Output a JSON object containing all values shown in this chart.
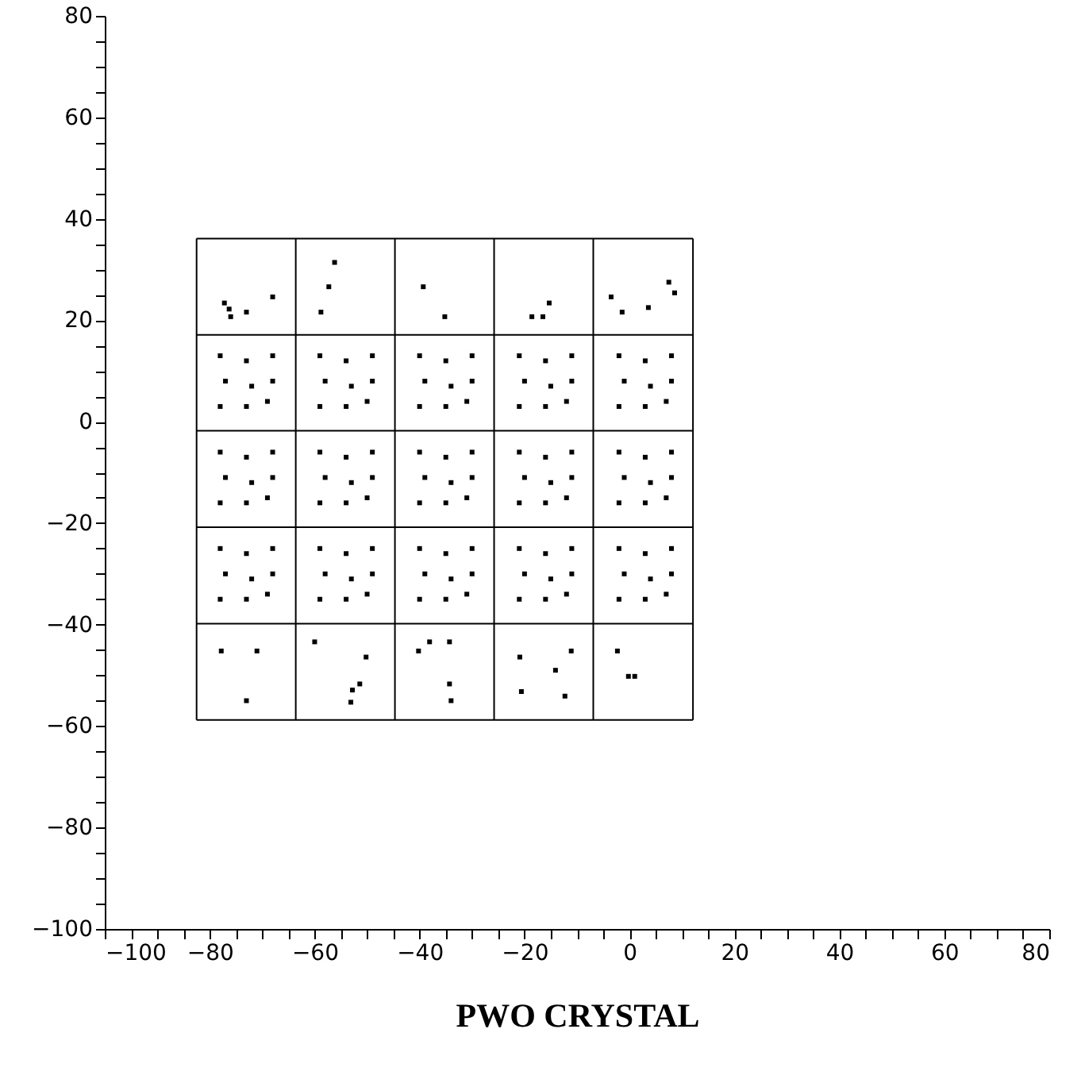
{
  "chart_data": {
    "type": "scatter",
    "xlabel": "PWO CRYSTAL",
    "xlim": [
      -100,
      80
    ],
    "ylim": [
      -100,
      80
    ],
    "xticks": [
      {
        "value": -100,
        "label": "−100"
      },
      {
        "value": -95,
        "label": null
      },
      {
        "value": -90,
        "label": null
      },
      {
        "value": -85,
        "label": null
      },
      {
        "value": -80,
        "label": "−80"
      },
      {
        "value": -75,
        "label": null
      },
      {
        "value": -70,
        "label": null
      },
      {
        "value": -65,
        "label": null
      },
      {
        "value": -60,
        "label": "−60"
      },
      {
        "value": -55,
        "label": null
      },
      {
        "value": -50,
        "label": null
      },
      {
        "value": -45,
        "label": null
      },
      {
        "value": -40,
        "label": "−40"
      },
      {
        "value": -35,
        "label": null
      },
      {
        "value": -30,
        "label": null
      },
      {
        "value": -25,
        "label": null
      },
      {
        "value": -20,
        "label": "−20"
      },
      {
        "value": -15,
        "label": null
      },
      {
        "value": -10,
        "label": null
      },
      {
        "value": -5,
        "label": null
      },
      0,
      {
        "value": 5,
        "label": null
      },
      {
        "value": 10,
        "label": null
      },
      {
        "value": 15,
        "label": null
      },
      20,
      {
        "value": 25,
        "label": null
      },
      {
        "value": 30,
        "label": null
      },
      {
        "value": 35,
        "label": null
      },
      40,
      {
        "value": 45,
        "label": null
      },
      {
        "value": 50,
        "label": null
      },
      {
        "value": 55,
        "label": null
      },
      60,
      {
        "value": 65,
        "label": null
      },
      {
        "value": 70,
        "label": null
      },
      {
        "value": 75,
        "label": null
      },
      80
    ],
    "yticks": [
      {
        "value": -100,
        "label": "−100"
      },
      {
        "value": -95,
        "label": null
      },
      {
        "value": -90,
        "label": null
      },
      {
        "value": -85,
        "label": null
      },
      {
        "value": -80,
        "label": "−80"
      },
      {
        "value": -75,
        "label": null
      },
      {
        "value": -70,
        "label": null
      },
      {
        "value": -65,
        "label": null
      },
      {
        "value": -60,
        "label": "−60"
      },
      {
        "value": -55,
        "label": null
      },
      {
        "value": -50,
        "label": null
      },
      {
        "value": -45,
        "label": null
      },
      {
        "value": -40,
        "label": "−40"
      },
      {
        "value": -35,
        "label": null
      },
      {
        "value": -30,
        "label": null
      },
      {
        "value": -25,
        "label": null
      },
      {
        "value": -20,
        "label": "−20"
      },
      {
        "value": -15,
        "label": null
      },
      {
        "value": -10,
        "label": null
      },
      {
        "value": -5,
        "label": null
      },
      0,
      {
        "value": 5,
        "label": null
      },
      {
        "value": 10,
        "label": null
      },
      {
        "value": 15,
        "label": null
      },
      20,
      {
        "value": 25,
        "label": null
      },
      {
        "value": 30,
        "label": null
      },
      {
        "value": 35,
        "label": null
      },
      40,
      {
        "value": 45,
        "label": null
      },
      {
        "value": 50,
        "label": null
      },
      {
        "value": 55,
        "label": null
      },
      60,
      {
        "value": 65,
        "label": null
      },
      {
        "value": 70,
        "label": null
      },
      {
        "value": 75,
        "label": null
      },
      80
    ],
    "grid": false,
    "series": [
      {
        "type": "line",
        "color": "#000000",
        "line_style": "solid",
        "x": [
          -82.5,
          12.1
        ],
        "values": [
          36.1,
          36.1
        ]
      },
      {
        "type": "line",
        "color": "#000000",
        "line_style": "solid",
        "x": [
          -82.5,
          12.1
        ],
        "values": [
          17.1,
          17.1
        ]
      },
      {
        "type": "line",
        "color": "#000000",
        "line_style": "solid",
        "x": [
          -82.5,
          12.1
        ],
        "values": [
          -1.8,
          -1.8
        ]
      },
      {
        "type": "line",
        "color": "#000000",
        "line_style": "solid",
        "x": [
          -82.5,
          12.1
        ],
        "values": [
          -20.8,
          -20.8
        ]
      },
      {
        "type": "line",
        "color": "#000000",
        "line_style": "solid",
        "x": [
          -82.5,
          12.1
        ],
        "values": [
          -39.8,
          -39.8
        ]
      },
      {
        "type": "line",
        "color": "#000000",
        "line_style": "solid",
        "x": [
          -82.5,
          12.1
        ],
        "values": [
          -58.8,
          -58.8
        ]
      },
      {
        "type": "line",
        "color": "#000000",
        "line_style": "solid",
        "x": [
          -82.5,
          -82.5
        ],
        "values": [
          36.1,
          -58.8
        ]
      },
      {
        "type": "line",
        "color": "#000000",
        "line_style": "solid",
        "x": [
          -63.6,
          -63.6
        ],
        "values": [
          36.1,
          -58.8
        ]
      },
      {
        "type": "line",
        "color": "#000000",
        "line_style": "solid",
        "x": [
          -44.7,
          -44.7
        ],
        "values": [
          36.1,
          -58.8
        ]
      },
      {
        "type": "line",
        "color": "#000000",
        "line_style": "solid",
        "x": [
          -25.8,
          -25.8
        ],
        "values": [
          36.1,
          -58.8
        ]
      },
      {
        "type": "line",
        "color": "#000000",
        "line_style": "solid",
        "x": [
          -6.9,
          -6.9
        ],
        "values": [
          36.1,
          -58.8
        ]
      },
      {
        "type": "line",
        "color": "#000000",
        "line_style": "solid",
        "x": [
          12.1,
          12.1
        ],
        "values": [
          36.1,
          -58.8
        ]
      },
      {
        "color": "#000000",
        "marker": "square",
        "x": [
          -77.2,
          -76.3,
          -76.0,
          -73.0,
          -68.0,
          -56.2,
          -57.3,
          -58.8,
          -39.3,
          -35.2,
          -18.6,
          -16.5,
          -15.3,
          -3.5,
          -1.4,
          3.6,
          7.5,
          8.6,
          -77.8,
          -71.0,
          -73.0,
          -60.0,
          -50.2,
          -51.4,
          -52.8,
          -53.1,
          -40.2,
          -38.1,
          -34.3,
          -34.3,
          -34.0,
          -20.9,
          -20.6,
          -14.1,
          -12.3,
          -11.1,
          -2.3,
          -0.2,
          1.0
        ],
        "values": [
          23.4,
          22.2,
          20.7,
          21.6,
          24.6,
          31.4,
          26.6,
          21.6,
          26.6,
          20.7,
          20.7,
          20.7,
          23.4,
          24.6,
          21.6,
          22.5,
          27.5,
          25.4,
          -45.2,
          -45.2,
          -55.0,
          -43.4,
          -46.4,
          -51.7,
          -52.9,
          -55.3,
          -45.2,
          -43.4,
          -43.4,
          -51.7,
          -55.0,
          -46.4,
          -53.2,
          -49.0,
          -54.1,
          -45.2,
          -45.2,
          -50.2,
          -50.2
        ]
      },
      {
        "color": "#000000",
        "marker": "square",
        "x": [
          -78,
          -73,
          -68,
          -77,
          -72,
          -68,
          -78,
          -73,
          -69,
          -59,
          -54,
          -49,
          -58,
          -53,
          -49,
          -59,
          -54,
          -50,
          -40,
          -35,
          -30,
          -39,
          -34,
          -30,
          -40,
          -35,
          -31,
          -21,
          -16,
          -11,
          -20,
          -15,
          -11,
          -21,
          -16,
          -12,
          -2,
          3,
          8,
          -1,
          4,
          8,
          -2,
          3,
          7,
          -78,
          -73,
          -68,
          -77,
          -72,
          -68,
          -78,
          -73,
          -69,
          -59,
          -54,
          -49,
          -58,
          -53,
          -49,
          -59,
          -54,
          -50,
          -40,
          -35,
          -30,
          -39,
          -34,
          -30,
          -40,
          -35,
          -31,
          -21,
          -16,
          -11,
          -20,
          -15,
          -11,
          -21,
          -16,
          -12,
          -2,
          3,
          8,
          -1,
          4,
          8,
          -2,
          3,
          7,
          -78,
          -73,
          -68,
          -77,
          -72,
          -68,
          -78,
          -73,
          -69,
          -59,
          -54,
          -49,
          -58,
          -53,
          -49,
          -59,
          -54,
          -50,
          -40,
          -35,
          -30,
          -39,
          -34,
          -30,
          -40,
          -35,
          -31,
          -21,
          -16,
          -11,
          -20,
          -15,
          -11,
          -21,
          -16,
          -12,
          -2,
          3,
          8,
          -1,
          4,
          8,
          -2,
          3,
          7
        ],
        "values": [
          13,
          12,
          13,
          8,
          7,
          8,
          3,
          3,
          4,
          13,
          12,
          13,
          8,
          7,
          8,
          3,
          3,
          4,
          13,
          12,
          13,
          8,
          7,
          8,
          3,
          3,
          4,
          13,
          12,
          13,
          8,
          7,
          8,
          3,
          3,
          4,
          13,
          12,
          13,
          8,
          7,
          8,
          3,
          3,
          4,
          -6,
          -7,
          -6,
          -11,
          -12,
          -11,
          -16,
          -16,
          -15,
          -6,
          -7,
          -6,
          -11,
          -12,
          -11,
          -16,
          -16,
          -15,
          -6,
          -7,
          -6,
          -11,
          -12,
          -11,
          -16,
          -16,
          -15,
          -6,
          -7,
          -6,
          -11,
          -12,
          -11,
          -16,
          -16,
          -15,
          -6,
          -7,
          -6,
          -11,
          -12,
          -11,
          -16,
          -16,
          -15,
          -25,
          -26,
          -25,
          -30,
          -31,
          -30,
          -35,
          -35,
          -34,
          -25,
          -26,
          -25,
          -30,
          -31,
          -30,
          -35,
          -35,
          -34,
          -25,
          -26,
          -25,
          -30,
          -31,
          -30,
          -35,
          -35,
          -34,
          -25,
          -26,
          -25,
          -30,
          -31,
          -30,
          -35,
          -35,
          -34,
          -25,
          -26,
          -25,
          -30,
          -31,
          -30,
          -35,
          -35,
          -34
        ]
      }
    ]
  }
}
